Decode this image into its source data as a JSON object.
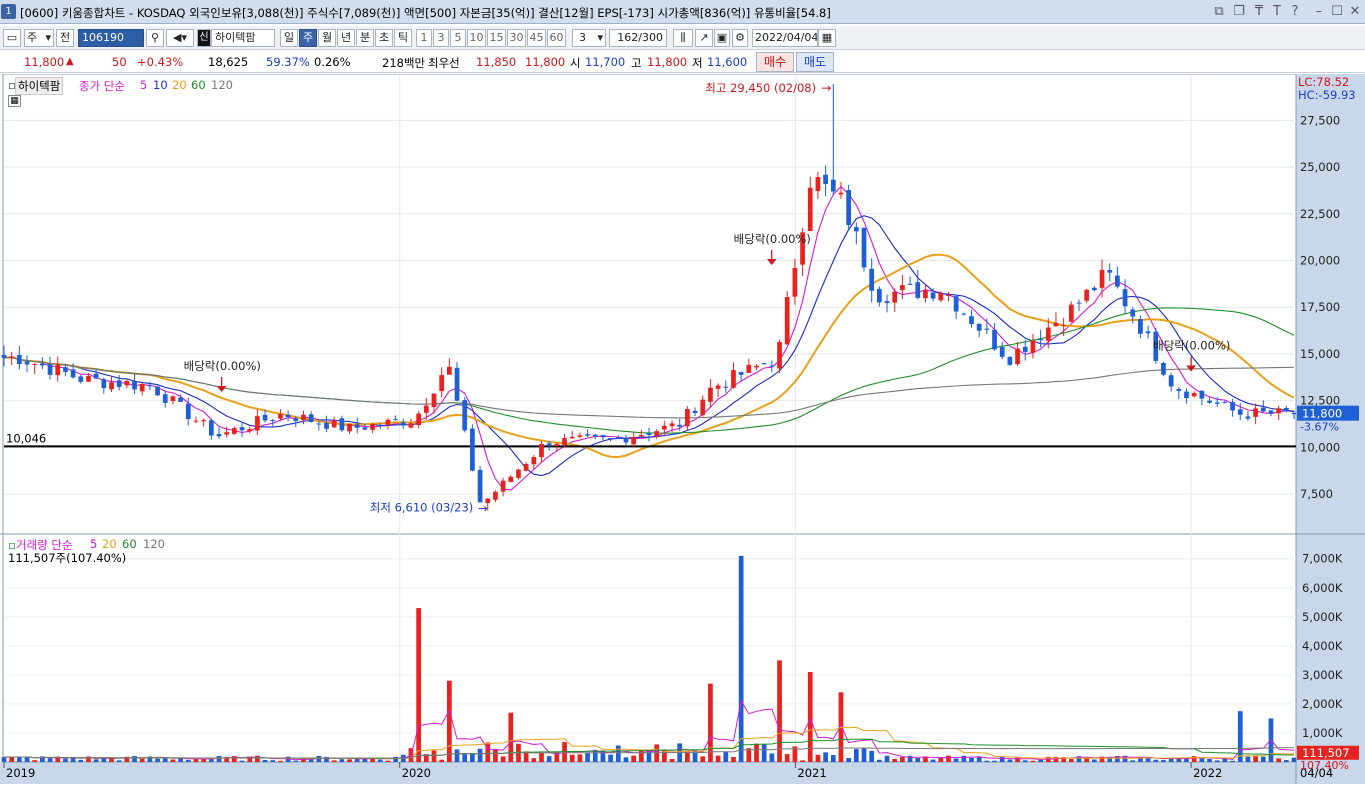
{
  "window": {
    "number": "1",
    "title": "[0600] 키움종합차트 - KOSDAQ 외국인보유[3,088(천)] 주식수[7,089(천)] 액면[500] 자본금[35(억)] 결산[12월] EPS[-173] 시가총액[836(억)] 유통비율[54.8]"
  },
  "toolbar": {
    "period_select": "주",
    "prev_btn": "전",
    "code": "106190",
    "stock_tag": "신",
    "stock_name": "하이텍팜",
    "periods": [
      "일",
      "주",
      "월",
      "년",
      "분",
      "초",
      "틱"
    ],
    "active_period": "주",
    "intervals": [
      "1",
      "3",
      "5",
      "10",
      "15",
      "30",
      "45",
      "60"
    ],
    "custom_interval": "3",
    "count": "162/300",
    "date": "2022/04/04"
  },
  "quote": {
    "price": "11,800",
    "change": "50",
    "change_pct": "+0.43%",
    "volume": "18,625",
    "vol_ratio": "59.37%",
    "turnover": "0.26%",
    "amount": "218백만",
    "best_ask_label": "최우선",
    "best_ask": "11,850",
    "best_bid": "11,800",
    "open_label": "시",
    "open": "11,700",
    "high_label": "고",
    "high": "11,800",
    "low_label": "저",
    "low": "11,600",
    "buy_btn": "매수",
    "sell_btn": "매도"
  },
  "price_panel": {
    "stock_label": "하이텍팜",
    "ma_legend": {
      "label": "종가 단순",
      "periods": [
        "5",
        "10",
        "20",
        "60",
        "120"
      ]
    },
    "lc": "LC:78.52",
    "hc": "HC:-59.93",
    "high_annotation": "최고 29,450 (02/08)",
    "low_annotation": "최저 6,610 (03/23)",
    "dividend_label": "배당락(0.00%)",
    "ref_line_label": "10,046",
    "current_price_tag": "11,800",
    "current_change_tag": "-3.67%",
    "y_ticks": [
      "27,500",
      "25,000",
      "22,500",
      "20,000",
      "17,500",
      "15,000",
      "12,500",
      "10,000",
      "7,500"
    ]
  },
  "volume_panel": {
    "label": "거래량 단순",
    "periods": [
      "5",
      "20",
      "60",
      "120"
    ],
    "current": "111,507주(107.40%)",
    "current_tag": "111,507",
    "current_pct_tag": "107.40%",
    "y_ticks": [
      "7,000K",
      "6,000K",
      "5,000K",
      "4,000K",
      "3,000K",
      "2,000K",
      "1,000K"
    ]
  },
  "x_axis": {
    "labels": [
      "2019",
      "2020",
      "2021",
      "2022",
      "04/04"
    ]
  },
  "colors": {
    "up": "#e8231f",
    "down": "#1f5fd6",
    "ma5": "#d41ad4",
    "ma10": "#1a2bc7",
    "ma20": "#e8a11a",
    "ma60": "#1f8f2a",
    "ma120": "#777777",
    "axis_bg": "#c8d8ea"
  },
  "chart_data": {
    "type": "candlestick",
    "interval": "weekly",
    "price_range": [
      6000,
      29450
    ],
    "volume_range_k": [
      0,
      7300
    ],
    "x_range": [
      "2019-01",
      "2022-04-04"
    ],
    "anchors": [
      {
        "date": "2019-01",
        "close": 14800
      },
      {
        "date": "2019-03",
        "close": 13600
      },
      {
        "date": "2019-05",
        "close": 13300
      },
      {
        "date": "2019-07",
        "close": 10600
      },
      {
        "date": "2019-09",
        "close": 11800
      },
      {
        "date": "2019-11",
        "close": 11000
      },
      {
        "date": "2020-01",
        "close": 11500
      },
      {
        "date": "2020-02",
        "close": 14500
      },
      {
        "date": "2020-03",
        "close": 6900
      },
      {
        "date": "2020-05",
        "close": 10300
      },
      {
        "date": "2020-07",
        "close": 10400
      },
      {
        "date": "2020-09",
        "close": 11200
      },
      {
        "date": "2020-10",
        "close": 13200
      },
      {
        "date": "2020-12",
        "close": 14800
      },
      {
        "date": "2021-01",
        "close": 24500
      },
      {
        "date": "2021-02",
        "close": 23000
      },
      {
        "date": "2021-03",
        "close": 18200
      },
      {
        "date": "2021-05",
        "close": 18500
      },
      {
        "date": "2021-07",
        "close": 14800
      },
      {
        "date": "2021-09",
        "close": 17500
      },
      {
        "date": "2021-10",
        "close": 19300
      },
      {
        "date": "2021-11",
        "close": 16500
      },
      {
        "date": "2021-12",
        "close": 13300
      },
      {
        "date": "2022-02",
        "close": 11800
      },
      {
        "date": "2022-04-04",
        "close": 11800
      }
    ],
    "extremes": {
      "high": {
        "date": "2021-02-08",
        "value": 29450
      },
      "low": {
        "date": "2020-03-23",
        "value": 6610
      }
    },
    "reference_line": 10046,
    "volume_spikes_k": [
      {
        "date": "2020-01",
        "value": 5300
      },
      {
        "date": "2020-02",
        "value": 2800
      },
      {
        "date": "2020-04",
        "value": 1700
      },
      {
        "date": "2020-10",
        "value": 2700
      },
      {
        "date": "2020-11",
        "value": 7100
      },
      {
        "date": "2020-12",
        "value": 3500
      },
      {
        "date": "2021-01",
        "value": 3100
      },
      {
        "date": "2021-02",
        "value": 2400
      },
      {
        "date": "2022-02",
        "value": 1750
      },
      {
        "date": "2022-03",
        "value": 1500
      }
    ]
  }
}
